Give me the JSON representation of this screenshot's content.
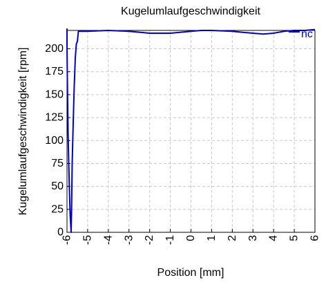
{
  "chart_data": {
    "type": "line",
    "title": "Kugelumlaufgeschwindigkeit",
    "xlabel": "Position [mm]",
    "ylabel": "Kugelumlaufgeschwindigkeit [rpm]",
    "xlim": [
      -6,
      6
    ],
    "ylim": [
      0,
      220
    ],
    "xticks": [
      -6,
      -5,
      -4,
      -3,
      -2,
      -1,
      0,
      1,
      2,
      3,
      4,
      5,
      6
    ],
    "xtick_labels": [
      "-6",
      "-5",
      "-4",
      "-3",
      "-2",
      "-1",
      "0",
      "1",
      "2",
      "3",
      "4",
      "5",
      "6"
    ],
    "yticks": [
      0,
      25,
      50,
      75,
      100,
      125,
      150,
      175,
      200
    ],
    "ytick_labels": [
      "0",
      "25",
      "50",
      "75",
      "100",
      "125",
      "150",
      "175",
      "200"
    ],
    "grid": true,
    "legend_position": "top-right",
    "series": [
      {
        "name": "nc",
        "color": "#0000cc",
        "x": [
          -6.0,
          -6.0,
          -5.98,
          -5.95,
          -5.9,
          -5.85,
          -5.8,
          -5.78,
          -5.75,
          -5.7,
          -5.65,
          -5.6,
          -5.55,
          -5.5,
          -5.45,
          -5.0,
          -4.0,
          -3.0,
          -2.0,
          -1.0,
          0.0,
          0.5,
          1.0,
          2.0,
          2.5,
          3.0,
          3.5,
          4.0,
          4.5,
          5.0,
          5.5,
          6.0
        ],
        "y": [
          222,
          205,
          160,
          110,
          60,
          20,
          0,
          25,
          75,
          120,
          160,
          190,
          205,
          208,
          219,
          219,
          220,
          219,
          217,
          217,
          219,
          220,
          220,
          219,
          218,
          217,
          216,
          217,
          219,
          220,
          220,
          221
        ]
      }
    ]
  }
}
